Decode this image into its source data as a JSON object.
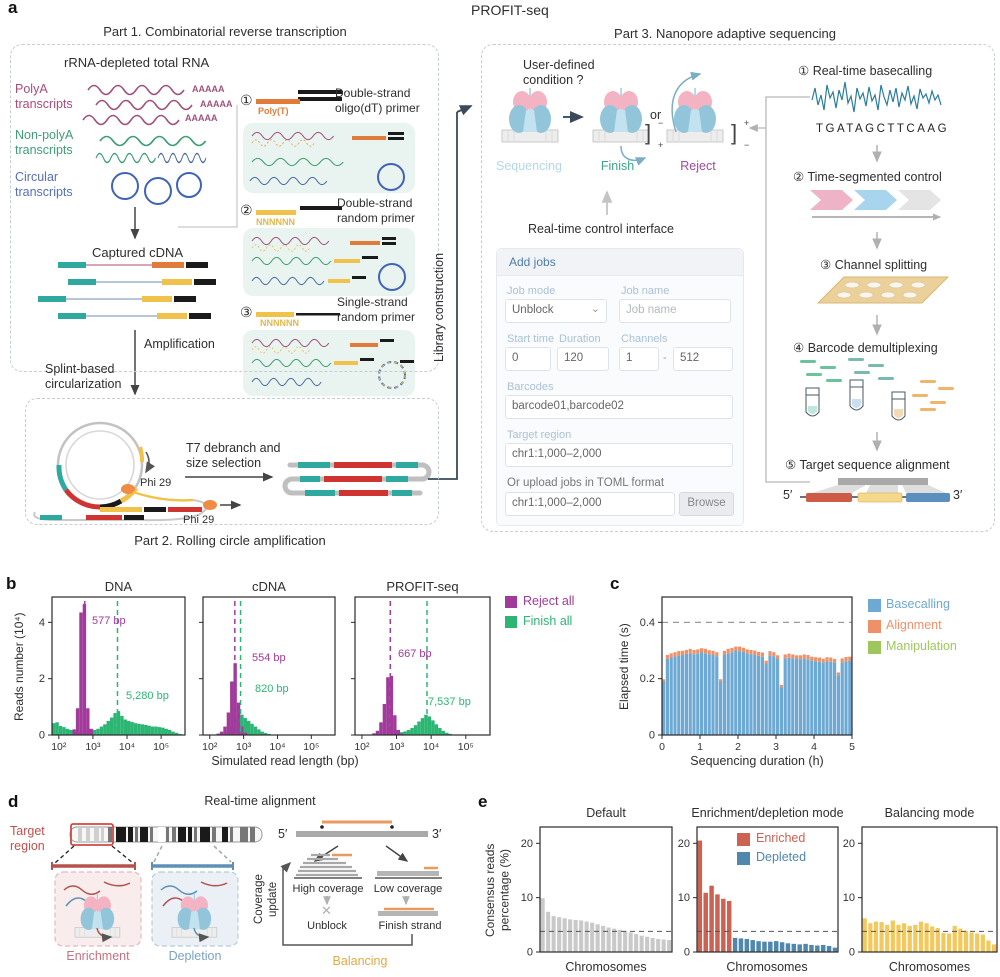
{
  "figure": {
    "title": "PROFIT-seq",
    "labels": {
      "a": "a",
      "b": "b",
      "c": "c",
      "d": "d",
      "e": "e"
    }
  },
  "part1": {
    "title": "Part 1. Combinatorial reverse transcription",
    "rna_header": "rRNA-depleted total RNA",
    "polya": "PolyA transcripts",
    "nonpolya": "Non-polyA transcripts",
    "circular": "Circular transcripts",
    "aaaaa": "AAAAA",
    "captured": "Captured cDNA",
    "amplification": "Amplification",
    "splint": "Splint-based circularization",
    "primers": [
      {
        "num": "①",
        "label": "Double-strand oligo(dT) primer",
        "seq": "Poly(T)"
      },
      {
        "num": "②",
        "label": "Double-strand random primer",
        "seq": "NNNNNN"
      },
      {
        "num": "③",
        "label": "Single-strand random primer",
        "seq": "NNNNNN"
      }
    ]
  },
  "part2": {
    "title": "Part 2. Rolling circle amplification",
    "t7": "T7 debranch and size selection",
    "phi29_a": "Phi 29",
    "phi29_b": "Phi 29"
  },
  "library_construction": "Library construction",
  "part3": {
    "title": "Part 3. Nanopore adaptive sequencing",
    "condition": "User-defined condition ?",
    "or": "or",
    "sequencing": "Sequencing",
    "finish": "Finish",
    "reject": "Reject",
    "bracket": "]",
    "finish_top": "−",
    "finish_bottom": "+",
    "reject_top": "+",
    "reject_bottom": "−",
    "rtci": "Real-time control interface",
    "form": {
      "header": "Add jobs",
      "job_mode_label": "Job mode",
      "job_mode_value": "Unblock",
      "job_name_label": "Job name",
      "job_name_placeholder": "Job name",
      "start_time_label": "Start time",
      "start_time_value": "0",
      "duration_label": "Duration",
      "duration_value": "120",
      "channels_label": "Channels",
      "channels_from": "1",
      "channels_sep": "-",
      "channels_to": "512",
      "barcodes_label": "Barcodes",
      "barcodes_value": "barcode01,barcode02",
      "target_label": "Target region",
      "target_value": "chr1:1,000–2,000",
      "upload_label": "Or upload jobs in TOML format",
      "upload_value": "chr1:1,000–2,000",
      "browse": "Browse"
    },
    "steps": [
      {
        "num": "①",
        "label": "Real-time basecalling"
      },
      {
        "num": "②",
        "label": "Time-segmented control"
      },
      {
        "num": "③",
        "label": "Channel splitting"
      },
      {
        "num": "④",
        "label": "Barcode demultiplexing"
      },
      {
        "num": "⑤",
        "label": "Target sequence alignment"
      }
    ],
    "basecall_seq": "TGATAGCTTCAAG",
    "five_prime": "5′",
    "three_prime": "3′"
  },
  "panel_b": {
    "ylabel": "Reads number (10⁴)",
    "xlabel": "Simulated read length (bp)",
    "legend": [
      {
        "label": "Reject all",
        "color": "#a13a9b"
      },
      {
        "label": "Finish all",
        "color": "#2db673"
      }
    ]
  },
  "panel_c": {
    "ylabel": "Elapsed time (s)",
    "xlabel": "Sequencing duration (h)",
    "legend": [
      {
        "label": "Basecalling",
        "color": "#6da9d2"
      },
      {
        "label": "Alignment",
        "color": "#ee9168"
      },
      {
        "label": "Manipulation",
        "color": "#9dc75c"
      }
    ]
  },
  "panel_d": {
    "title": "Real-time alignment",
    "target_region": "Target region",
    "enrichment": "Enrichment",
    "depletion": "Depletion",
    "coverage_update": "Coverage update",
    "high_coverage": "High coverage",
    "low_coverage": "Low coverage",
    "unblock": "Unblock",
    "cross": "✕",
    "finish_strand": "Finish strand",
    "balancing": "Balancing",
    "five_prime": "5′",
    "three_prime": "3′"
  },
  "panel_e": {
    "ylabel": "Consensus reads percentage (%)",
    "xlabel": "Chromosomes",
    "legend": [
      {
        "label": "Enriched",
        "color": "#cd6152"
      },
      {
        "label": "Depleted",
        "color": "#4f87ad"
      }
    ]
  },
  "chart_data": [
    {
      "id": "dna",
      "type": "histogram",
      "title": "DNA",
      "xlabel": "Simulated read length (bp)",
      "ylabel": "Reads number (10⁴)",
      "x_ticks": [
        {
          "log": 2,
          "label": "10²"
        },
        {
          "log": 3,
          "label": "10³"
        },
        {
          "log": 4,
          "label": "10⁴"
        },
        {
          "log": 5,
          "label": "10⁵"
        }
      ],
      "y_ticks": [
        0,
        2,
        4
      ],
      "ylim": [
        0,
        4.9
      ],
      "series": [
        {
          "name": "Finish all",
          "color": "#2db673",
          "bin_width": 0.1,
          "bins": [
            [
              1.85,
              0.42
            ],
            [
              1.95,
              0.45
            ],
            [
              2.05,
              0.32
            ],
            [
              2.15,
              0.28
            ],
            [
              2.25,
              0.22
            ],
            [
              2.35,
              0.18
            ],
            [
              2.45,
              0.12
            ],
            [
              2.55,
              0.1
            ],
            [
              2.65,
              0.1
            ],
            [
              2.75,
              0.1
            ],
            [
              2.85,
              0.12
            ],
            [
              2.95,
              0.16
            ],
            [
              3.05,
              0.18
            ],
            [
              3.15,
              0.22
            ],
            [
              3.25,
              0.3
            ],
            [
              3.35,
              0.38
            ],
            [
              3.45,
              0.5
            ],
            [
              3.55,
              0.62
            ],
            [
              3.65,
              0.78
            ],
            [
              3.75,
              0.85
            ],
            [
              3.85,
              0.68
            ],
            [
              3.95,
              0.55
            ],
            [
              4.05,
              0.5
            ],
            [
              4.15,
              0.46
            ],
            [
              4.25,
              0.42
            ],
            [
              4.35,
              0.4
            ],
            [
              4.45,
              0.38
            ],
            [
              4.55,
              0.36
            ],
            [
              4.65,
              0.33
            ],
            [
              4.75,
              0.3
            ],
            [
              4.85,
              0.3
            ],
            [
              4.95,
              0.28
            ],
            [
              5.05,
              0.26
            ],
            [
              5.15,
              0.22
            ],
            [
              5.25,
              0.18
            ],
            [
              5.35,
              0.12
            ],
            [
              5.45,
              0.08
            ],
            [
              5.55,
              0.04
            ]
          ]
        },
        {
          "name": "Reject all",
          "color": "#a13a9b",
          "bin_width": 0.1,
          "bins": [
            [
              2.45,
              0.2
            ],
            [
              2.55,
              0.95
            ],
            [
              2.65,
              4.35
            ],
            [
              2.75,
              4.65
            ],
            [
              2.85,
              0.95
            ],
            [
              2.95,
              0.22
            ]
          ]
        }
      ],
      "annotations": [
        {
          "text": "577 bp",
          "log": 2.76,
          "color": "#a13a9b"
        },
        {
          "text": "5,280 bp",
          "log": 3.72,
          "color": "#2db673"
        }
      ]
    },
    {
      "id": "cdna",
      "type": "histogram",
      "title": "cDNA",
      "x_ticks": [
        {
          "log": 2,
          "label": "10²"
        },
        {
          "log": 3,
          "label": "10³"
        },
        {
          "log": 4,
          "label": "10⁴"
        },
        {
          "log": 5,
          "label": "10⁵"
        }
      ],
      "y_ticks": [
        0,
        2,
        4
      ],
      "ylim": [
        0,
        4.9
      ],
      "series": [
        {
          "name": "Finish all",
          "color": "#2db673",
          "bin_width": 0.1,
          "bins": [
            [
              2.45,
              0.05
            ],
            [
              2.55,
              0.12
            ],
            [
              2.65,
              0.3
            ],
            [
              2.75,
              0.55
            ],
            [
              2.85,
              0.75
            ],
            [
              2.95,
              0.72
            ],
            [
              3.05,
              0.6
            ],
            [
              3.15,
              0.5
            ],
            [
              3.25,
              0.4
            ],
            [
              3.35,
              0.3
            ],
            [
              3.45,
              0.2
            ],
            [
              3.55,
              0.12
            ],
            [
              3.65,
              0.07
            ],
            [
              3.75,
              0.04
            ]
          ]
        },
        {
          "name": "Reject all",
          "color": "#a13a9b",
          "bin_width": 0.1,
          "bins": [
            [
              2.25,
              0.05
            ],
            [
              2.35,
              0.12
            ],
            [
              2.45,
              0.3
            ],
            [
              2.55,
              0.8
            ],
            [
              2.65,
              1.9
            ],
            [
              2.75,
              2.55
            ],
            [
              2.85,
              1.15
            ],
            [
              2.95,
              0.3
            ],
            [
              3.05,
              0.08
            ]
          ]
        }
      ],
      "annotations": [
        {
          "text": "554 bp",
          "log": 2.74,
          "color": "#a13a9b"
        },
        {
          "text": "820 bp",
          "log": 2.91,
          "color": "#2db673"
        }
      ]
    },
    {
      "id": "profit",
      "type": "histogram",
      "title": "PROFIT-seq",
      "x_ticks": [
        {
          "log": 2,
          "label": "10²"
        },
        {
          "log": 3,
          "label": "10³"
        },
        {
          "log": 4,
          "label": "10⁴"
        },
        {
          "log": 5,
          "label": "10⁵"
        }
      ],
      "y_ticks": [
        0,
        2,
        4
      ],
      "ylim": [
        0,
        4.9
      ],
      "series": [
        {
          "name": "Finish all",
          "color": "#2db673",
          "bin_width": 0.1,
          "bins": [
            [
              2.95,
              0.04
            ],
            [
              3.05,
              0.07
            ],
            [
              3.15,
              0.1
            ],
            [
              3.25,
              0.13
            ],
            [
              3.35,
              0.18
            ],
            [
              3.45,
              0.25
            ],
            [
              3.55,
              0.35
            ],
            [
              3.65,
              0.48
            ],
            [
              3.75,
              0.6
            ],
            [
              3.85,
              0.72
            ],
            [
              3.95,
              0.66
            ],
            [
              4.05,
              0.52
            ],
            [
              4.15,
              0.38
            ],
            [
              4.25,
              0.25
            ],
            [
              4.35,
              0.15
            ],
            [
              4.45,
              0.08
            ],
            [
              4.55,
              0.04
            ]
          ]
        },
        {
          "name": "Reject all",
          "color": "#a13a9b",
          "bin_width": 0.1,
          "bins": [
            [
              2.35,
              0.06
            ],
            [
              2.45,
              0.15
            ],
            [
              2.55,
              0.45
            ],
            [
              2.65,
              1.1
            ],
            [
              2.75,
              2.05
            ],
            [
              2.85,
              2.1
            ],
            [
              2.95,
              0.7
            ],
            [
              3.05,
              0.18
            ],
            [
              3.15,
              0.05
            ]
          ]
        }
      ],
      "annotations": [
        {
          "text": "667 bp",
          "log": 2.82,
          "color": "#a13a9b"
        },
        {
          "text": "7,537 bp",
          "log": 3.88,
          "color": "#2db673"
        }
      ]
    },
    {
      "id": "elapsed",
      "type": "stacked_bar",
      "xlabel": "Sequencing duration (h)",
      "ylabel": "Elapsed time (s)",
      "x_range": [
        0,
        5
      ],
      "x_ticks": [
        0,
        1,
        2,
        3,
        4,
        5
      ],
      "y_ticks": [
        0,
        0.2,
        0.4
      ],
      "ylim": [
        0,
        0.49
      ],
      "dashed_y": 0.4,
      "series": [
        {
          "name": "Basecalling",
          "color": "#6da9d2",
          "values": [
            0.19,
            0.27,
            0.275,
            0.28,
            0.282,
            0.284,
            0.288,
            0.29,
            0.287,
            0.29,
            0.293,
            0.29,
            0.287,
            0.284,
            0.28,
            0.19,
            0.284,
            0.29,
            0.294,
            0.3,
            0.298,
            0.295,
            0.29,
            0.287,
            0.284,
            0.281,
            0.278,
            0.252,
            0.283,
            0.28,
            0.27,
            0.17,
            0.272,
            0.274,
            0.272,
            0.27,
            0.268,
            0.272,
            0.269,
            0.265,
            0.262,
            0.26,
            0.258,
            0.262,
            0.26,
            0.257,
            0.212,
            0.258,
            0.262,
            0.264
          ]
        },
        {
          "name": "Alignment",
          "color": "#ee9168",
          "values": [
            0.008,
            0.014,
            0.015,
            0.014,
            0.016,
            0.015,
            0.014,
            0.016,
            0.015,
            0.014,
            0.015,
            0.016,
            0.014,
            0.015,
            0.014,
            0.008,
            0.015,
            0.016,
            0.015,
            0.014,
            0.016,
            0.015,
            0.014,
            0.015,
            0.016,
            0.014,
            0.015,
            0.012,
            0.015,
            0.014,
            0.013,
            0.008,
            0.014,
            0.015,
            0.014,
            0.013,
            0.015,
            0.014,
            0.015,
            0.013,
            0.014,
            0.015,
            0.013,
            0.014,
            0.015,
            0.013,
            0.01,
            0.014,
            0.015,
            0.014
          ]
        },
        {
          "name": "Manipulation",
          "color": "#9dc75c",
          "values": [
            0,
            0,
            0,
            0,
            0,
            0,
            0,
            0,
            0,
            0,
            0,
            0,
            0,
            0,
            0,
            0,
            0,
            0,
            0,
            0,
            0,
            0,
            0,
            0,
            0,
            0,
            0,
            0,
            0,
            0,
            0,
            0,
            0,
            0,
            0,
            0,
            0,
            0,
            0,
            0,
            0,
            0,
            0,
            0,
            0,
            0,
            0,
            0,
            0,
            0
          ]
        }
      ]
    },
    {
      "id": "e_default",
      "type": "bar",
      "title": "Default",
      "xlabel": "Chromosomes",
      "y_ticks": [
        0,
        10,
        20
      ],
      "ylim": [
        0,
        23
      ],
      "dashed_y": 3.8,
      "color": "#c9c9c9",
      "values": [
        9.9,
        7.4,
        6.6,
        6.4,
        6.2,
        6.0,
        5.9,
        5.8,
        5.6,
        5.4,
        5.1,
        4.8,
        4.5,
        4.3,
        4.1,
        3.9,
        3.6,
        3.3,
        3.0,
        2.8,
        2.6,
        2.4,
        2.3,
        2.2
      ]
    },
    {
      "id": "e_enrich",
      "type": "bar",
      "title": "Enrichment/depletion mode",
      "xlabel": "Chromosomes",
      "y_ticks": [
        0,
        10,
        20
      ],
      "ylim": [
        0,
        23
      ],
      "dashed_y": 3.8,
      "series": [
        {
          "name": "Enriched",
          "color": "#cd6152",
          "values": [
            20.5,
            10.9,
            12.2,
            10.6,
            9.8,
            9.4
          ]
        },
        {
          "name": "Depleted",
          "color": "#4f87ad",
          "values": [
            2.6,
            2.5,
            2.4,
            2.2,
            2.0,
            1.9,
            1.9,
            2.0,
            1.8,
            1.6,
            1.5,
            1.4,
            1.5,
            1.3,
            1.2,
            1.3,
            1.1,
            0.8
          ]
        }
      ]
    },
    {
      "id": "e_balance",
      "type": "bar",
      "title": "Balancing mode",
      "xlabel": "Chromosomes",
      "y_ticks": [
        0,
        10,
        20
      ],
      "ylim": [
        0,
        23
      ],
      "dashed_y": 3.8,
      "color": "#f3c95d",
      "values": [
        6.2,
        5.3,
        5.6,
        5.5,
        5.0,
        5.8,
        5.0,
        5.3,
        4.8,
        5.0,
        5.6,
        5.3,
        4.7,
        4.4,
        3.5,
        3.4,
        4.8,
        4.3,
        3.9,
        3.6,
        3.4,
        3.2,
        2.1,
        1.4
      ]
    }
  ]
}
